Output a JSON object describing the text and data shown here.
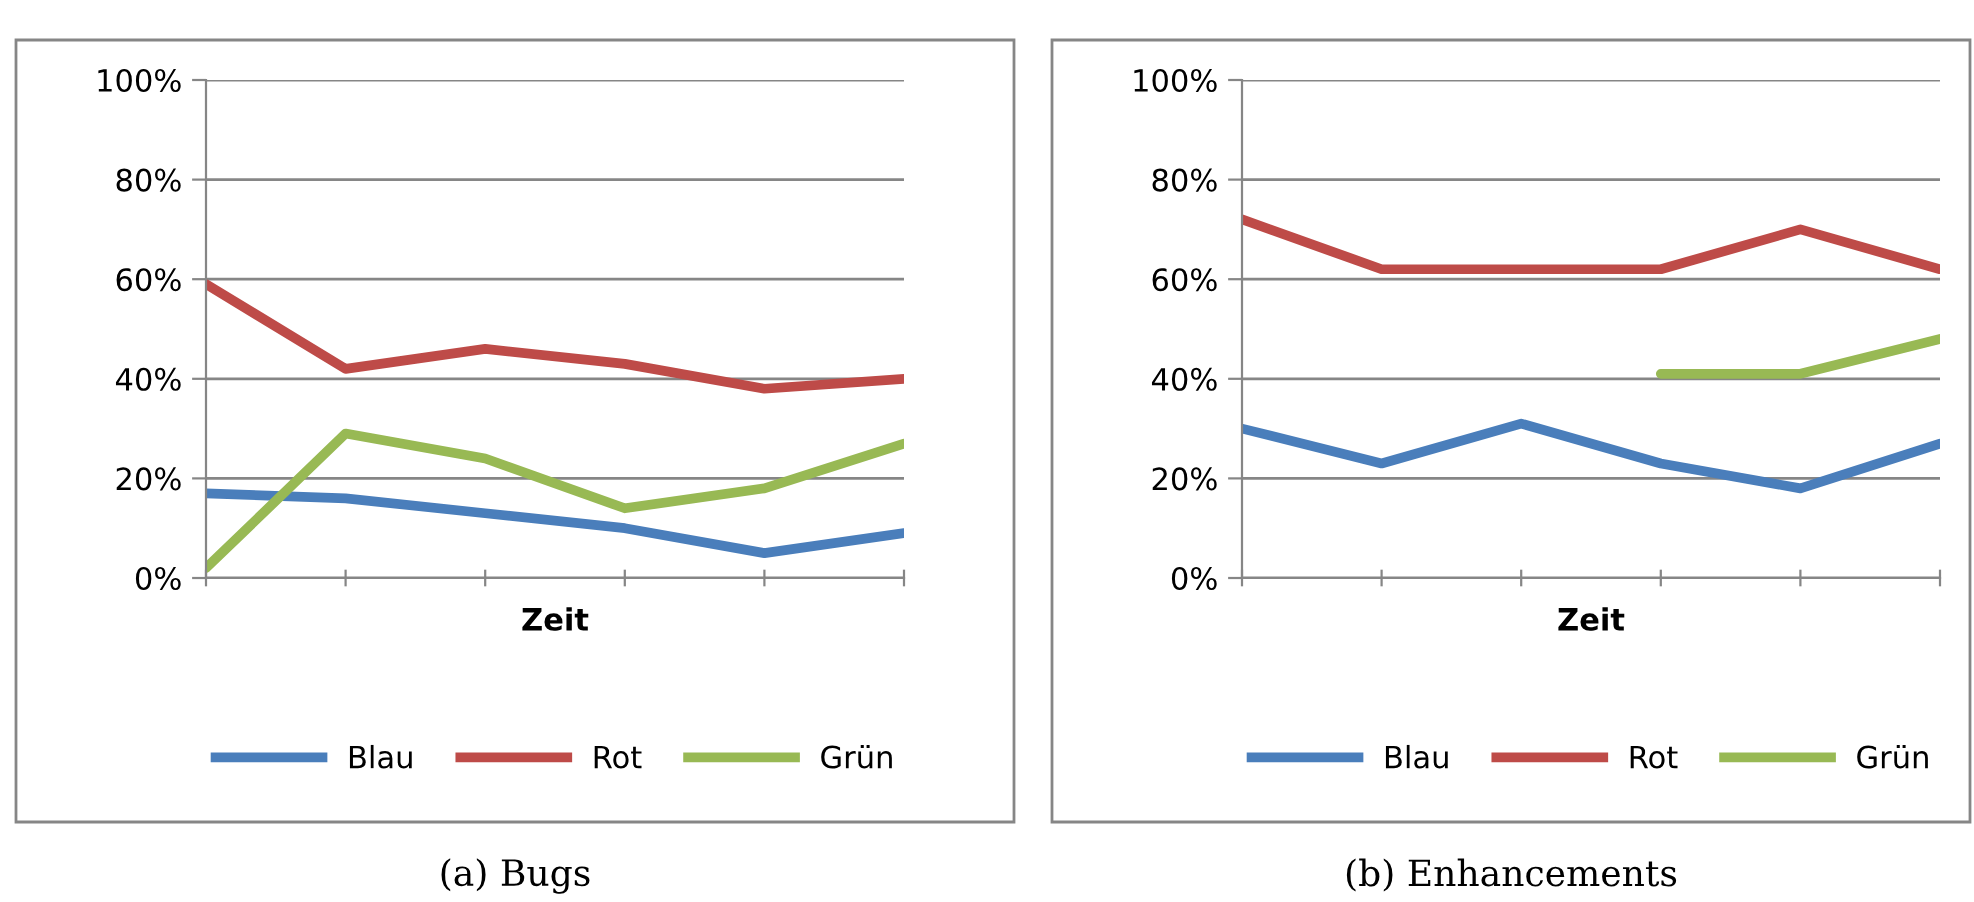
{
  "chart_data": [
    {
      "type": "line",
      "xlabel": "Zeit",
      "categories": [
        null,
        null,
        null,
        null,
        null,
        null
      ],
      "series": [
        {
          "name": "Blau",
          "color": "#4a7ebb",
          "values": [
            17,
            16,
            13,
            10,
            5,
            9
          ]
        },
        {
          "name": "Rot",
          "color": "#be4b48",
          "values": [
            59,
            42,
            46,
            43,
            38,
            40
          ]
        },
        {
          "name": "Grün",
          "color": "#98b954",
          "values": [
            2,
            29,
            24,
            14,
            18,
            27
          ]
        }
      ],
      "ylim": [
        0,
        100
      ],
      "yticks": [
        {
          "value": 0,
          "label": "0%"
        },
        {
          "value": 20,
          "label": "20%"
        },
        {
          "value": 40,
          "label": "40%"
        },
        {
          "value": 60,
          "label": "60%"
        },
        {
          "value": 80,
          "label": "80%"
        },
        {
          "value": 100,
          "label": "100%"
        }
      ],
      "grid": "y",
      "legend": "bottom",
      "marker": "none",
      "line_style": "solid",
      "annotations": [
        "(a) Bugs"
      ]
    },
    {
      "type": "line",
      "xlabel": "Zeit",
      "categories": [
        null,
        null,
        null,
        null,
        null,
        null
      ],
      "series": [
        {
          "name": "Blau",
          "color": "#4a7ebb",
          "values": [
            30,
            23,
            31,
            23,
            18,
            27
          ]
        },
        {
          "name": "Rot",
          "color": "#be4b48",
          "values": [
            72,
            62,
            62,
            62,
            70,
            62
          ]
        },
        {
          "name": "Grün",
          "color": "#98b954",
          "values": [
            null,
            null,
            null,
            41,
            41,
            48
          ]
        }
      ],
      "ylim": [
        0,
        100
      ],
      "yticks": [
        {
          "value": 0,
          "label": "0%"
        },
        {
          "value": 20,
          "label": "20%"
        },
        {
          "value": 40,
          "label": "40%"
        },
        {
          "value": 60,
          "label": "60%"
        },
        {
          "value": 80,
          "label": "80%"
        },
        {
          "value": 100,
          "label": "100%"
        }
      ],
      "grid": "y",
      "legend": "bottom",
      "marker": "none",
      "line_style": "solid",
      "annotations": [
        "(b) Enhancements"
      ]
    }
  ]
}
